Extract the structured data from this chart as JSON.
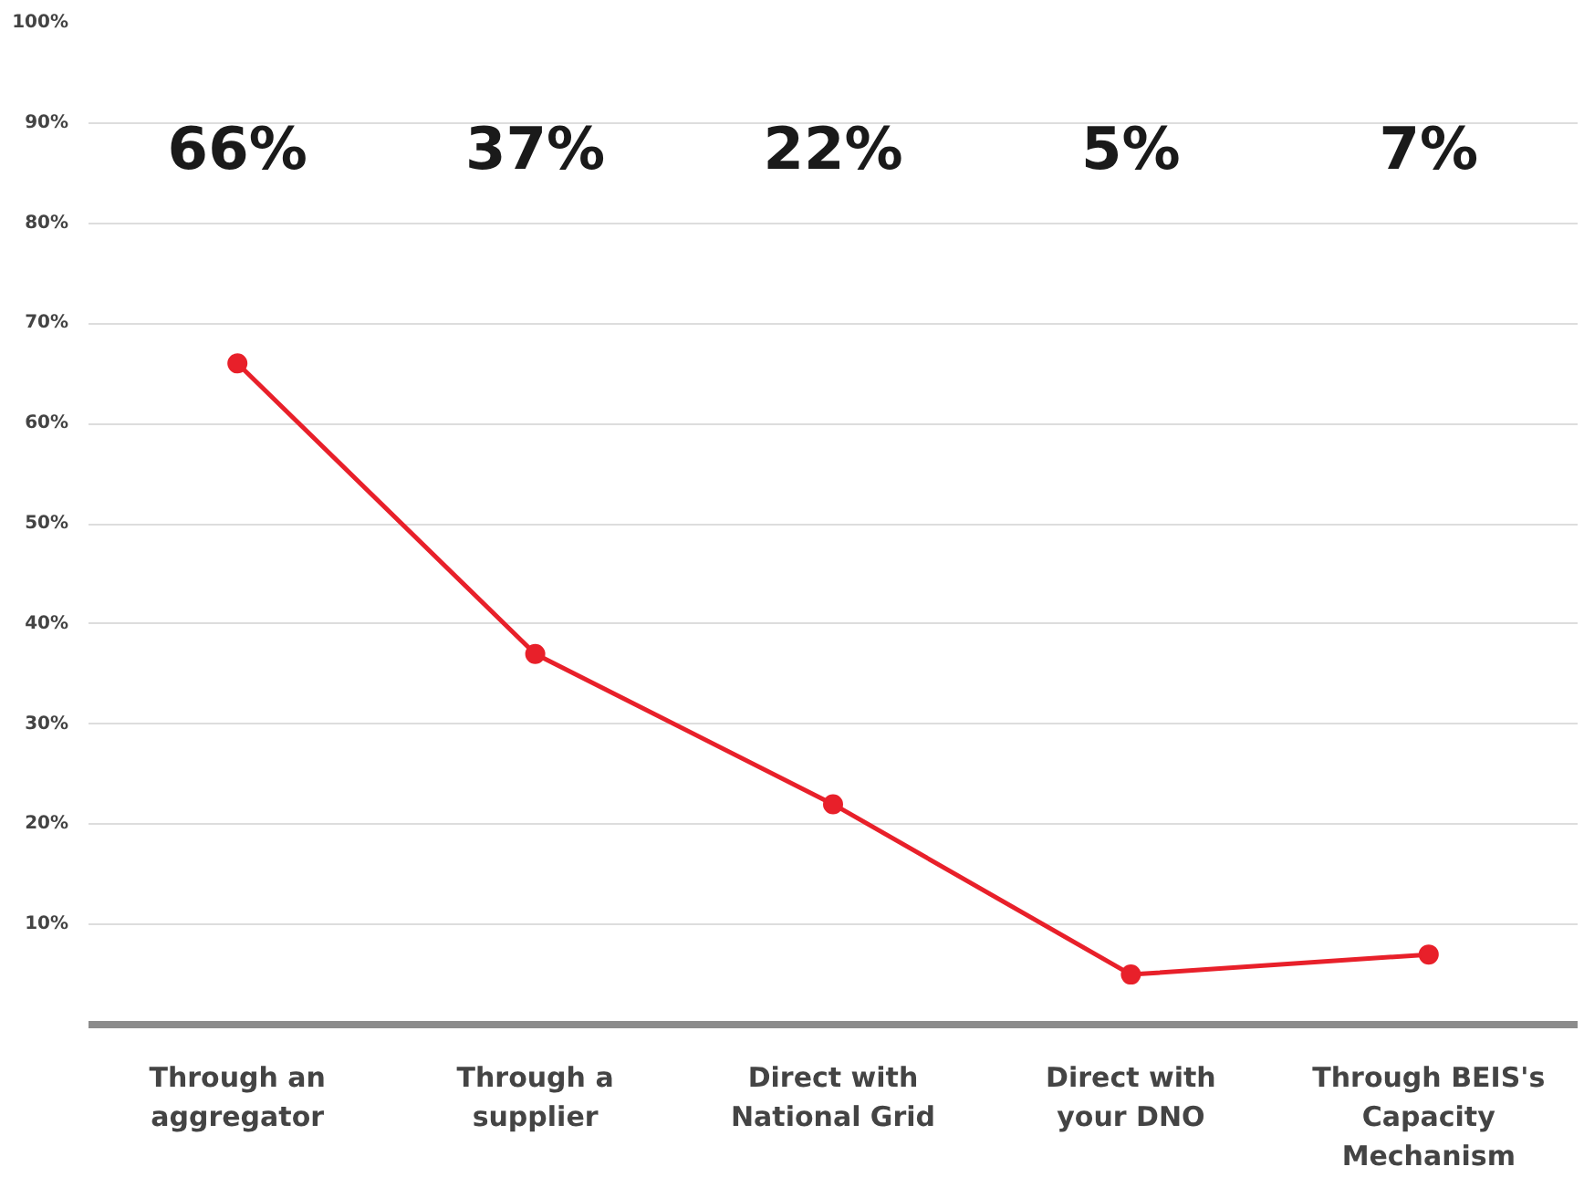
{
  "chart_data": {
    "type": "line",
    "categories": [
      "Through an\naggregator",
      "Through a\nsupplier",
      "Direct with\nNational Grid",
      "Direct with\nyour DNO",
      "Through BEIS's\nCapacity\nMechanism"
    ],
    "series": [
      {
        "color": "#e8202a",
        "values": [
          66,
          37,
          22,
          5,
          7
        ]
      }
    ],
    "value_labels": [
      "66%",
      "37%",
      "22%",
      "5%",
      "7%"
    ],
    "ylim": [
      0,
      100
    ],
    "yticks": [
      {
        "value": 0,
        "label": null
      },
      {
        "value": 10,
        "label": "10%"
      },
      {
        "value": 20,
        "label": "20%"
      },
      {
        "value": 30,
        "label": "30%"
      },
      {
        "value": 40,
        "label": "40%"
      },
      {
        "value": 50,
        "label": "50%"
      },
      {
        "value": 60,
        "label": "60%"
      },
      {
        "value": 70,
        "label": "70%"
      },
      {
        "value": 80,
        "label": "80%"
      },
      {
        "value": 90,
        "label": "90%"
      },
      {
        "value": 100,
        "label": "100%"
      }
    ],
    "grid": "y",
    "marker": "circle",
    "line_style": "solid"
  }
}
